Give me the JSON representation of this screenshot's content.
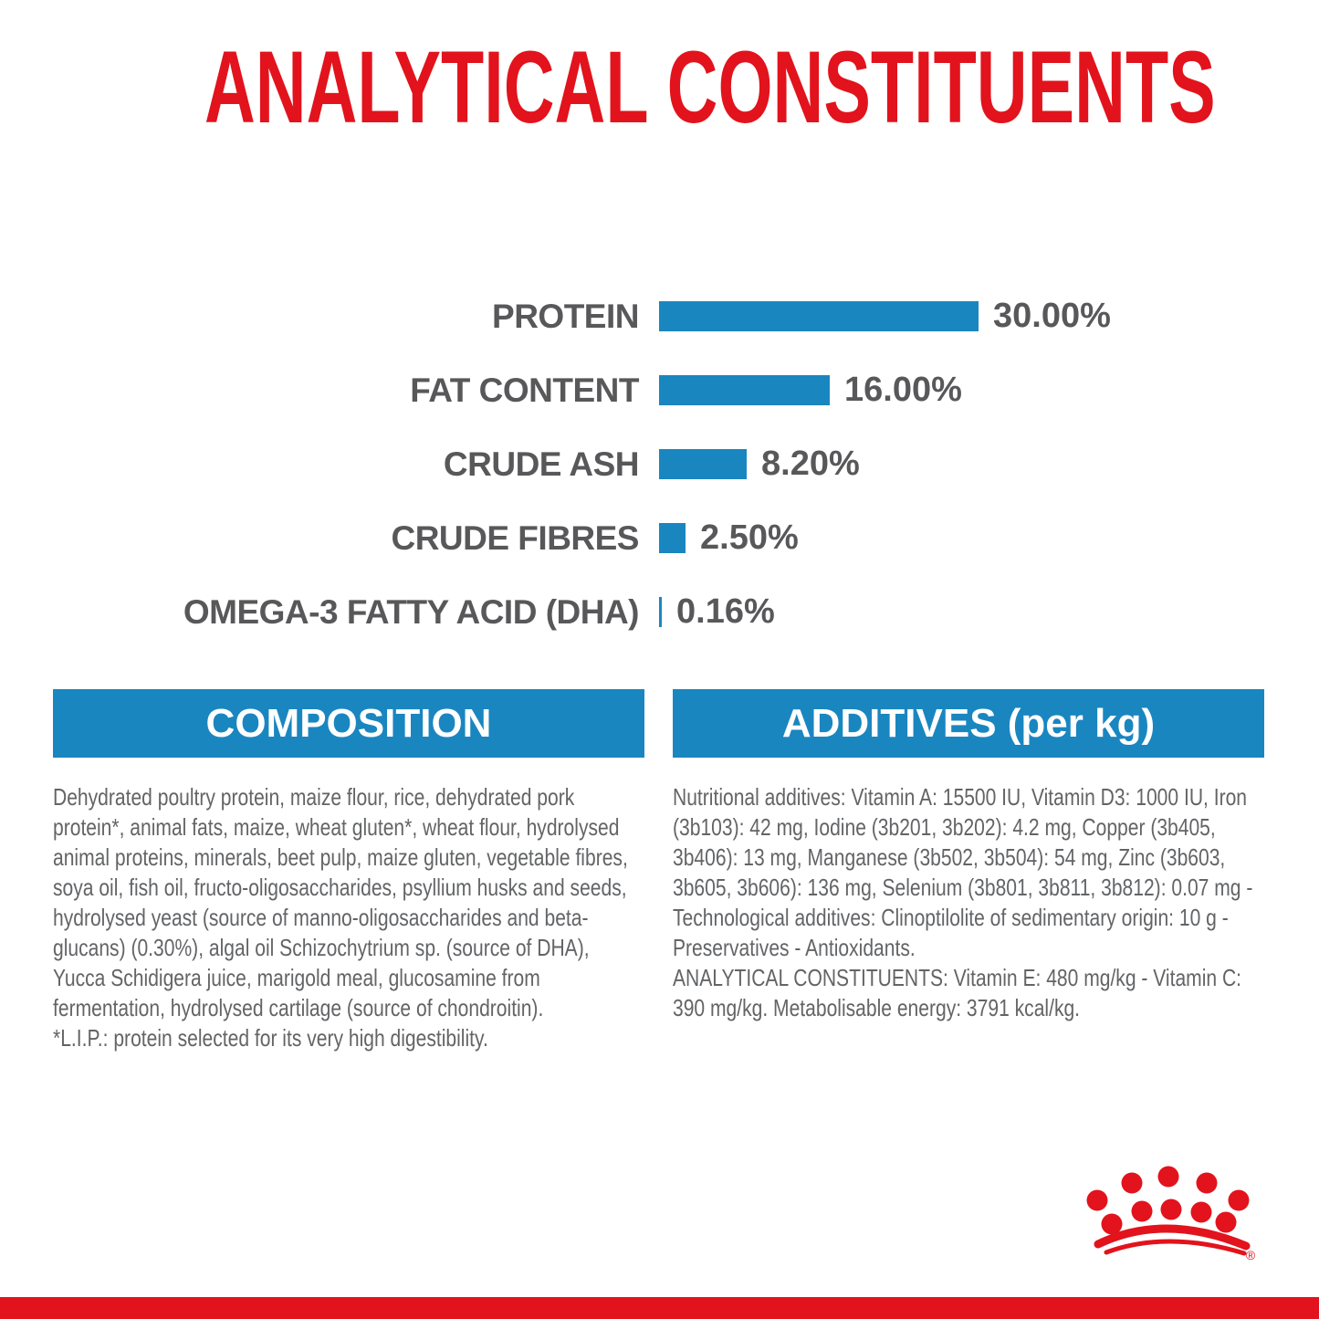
{
  "title": "ANALYTICAL CONSTITUENTS",
  "chart_data": {
    "type": "bar",
    "orientation": "horizontal",
    "unit": "%",
    "categories": [
      "PROTEIN",
      "FAT CONTENT",
      "CRUDE ASH",
      "CRUDE FIBRES",
      "OMEGA-3 FATTY ACID (DHA)"
    ],
    "values": [
      30.0,
      16.0,
      8.2,
      2.5,
      0.16
    ],
    "value_labels": [
      "30.00%",
      "16.00%",
      "8.20%",
      "2.50%",
      "0.16%"
    ],
    "xlim": [
      0,
      30
    ],
    "grid": false,
    "legend": false,
    "bar_color": "#1a86c0"
  },
  "composition": {
    "header": "COMPOSITION",
    "body": "Dehydrated poultry protein, maize flour, rice, dehydrated pork protein*, animal fats, maize, wheat gluten*, wheat flour, hydrolysed animal proteins, minerals, beet pulp, maize gluten, vegetable fibres, soya oil, fish oil, fructo-oligosaccharides, psyllium husks and seeds, hydrolysed yeast (source of manno-oligosaccharides and beta-glucans) (0.30%), algal oil Schizochytrium sp. (source of DHA), Yucca Schidigera juice, marigold meal, glucosamine from fermentation, hydrolysed cartilage (source of chondroitin).",
    "note": "*L.I.P.: protein selected for its very high digestibility."
  },
  "additives": {
    "header": "ADDITIVES (per kg)",
    "body": "Nutritional additives: Vitamin A: 15500 IU, Vitamin D3: 1000 IU, Iron (3b103): 42 mg, Iodine (3b201, 3b202): 4.2 mg, Copper (3b405, 3b406): 13 mg, Manganese (3b502, 3b504): 54 mg, Zinc (3b603, 3b605, 3b606): 136 mg, Selenium (3b801, 3b811, 3b812): 0.07 mg - Technological additives: Clinoptilolite of sedimentary origin: 10 g - Preservatives - Antioxidants.",
    "analytical": "ANALYTICAL CONSTITUENTS: Vitamin E: 480 mg/kg - Vitamin C: 390 mg/kg. Metabolisable energy: 3791 kcal/kg."
  },
  "logo": {
    "name": "royal-canin-crown",
    "registered_mark": "®"
  },
  "colors": {
    "brand_red": "#e2131c",
    "bar_blue": "#1a86c0",
    "label_gray": "#58585a",
    "body_gray": "#636466"
  }
}
